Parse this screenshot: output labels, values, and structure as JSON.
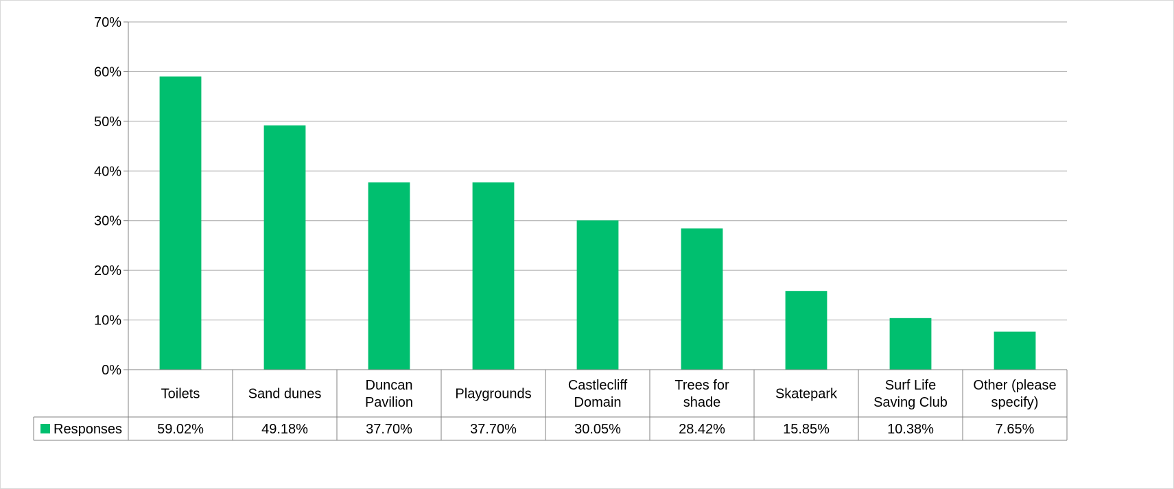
{
  "chart_data": {
    "type": "bar",
    "categories": [
      "Toilets",
      "Sand dunes",
      "Duncan Pavilion",
      "Playgrounds",
      "Castlecliff Domain",
      "Trees for shade",
      "Skatepark",
      "Surf Life Saving Club",
      "Other (please specify)"
    ],
    "category_label_lines": [
      [
        "Toilets"
      ],
      [
        "Sand dunes"
      ],
      [
        "Duncan",
        "Pavilion"
      ],
      [
        "Playgrounds"
      ],
      [
        "Castlecliff",
        "Domain"
      ],
      [
        "Trees for",
        "shade"
      ],
      [
        "Skatepark"
      ],
      [
        "Surf Life",
        "Saving Club"
      ],
      [
        "Other (please",
        "specify)"
      ]
    ],
    "series": [
      {
        "name": "Responses",
        "values": [
          59.02,
          49.18,
          37.7,
          37.7,
          30.05,
          28.42,
          15.85,
          10.38,
          7.65
        ],
        "labels": [
          "59.02%",
          "49.18%",
          "37.70%",
          "37.70%",
          "30.05%",
          "28.42%",
          "15.85%",
          "10.38%",
          "7.65%"
        ],
        "color": "#00bf6f"
      }
    ],
    "ylim": [
      0,
      70
    ],
    "yticks": [
      0,
      10,
      20,
      30,
      40,
      50,
      60,
      70
    ],
    "ytick_labels": [
      "0%",
      "10%",
      "20%",
      "30%",
      "40%",
      "50%",
      "60%",
      "70%"
    ],
    "grid": true,
    "legend": "data-table-left",
    "data_table": true,
    "gridline_color": "#a6a6a6",
    "table_border_color": "#808080"
  }
}
